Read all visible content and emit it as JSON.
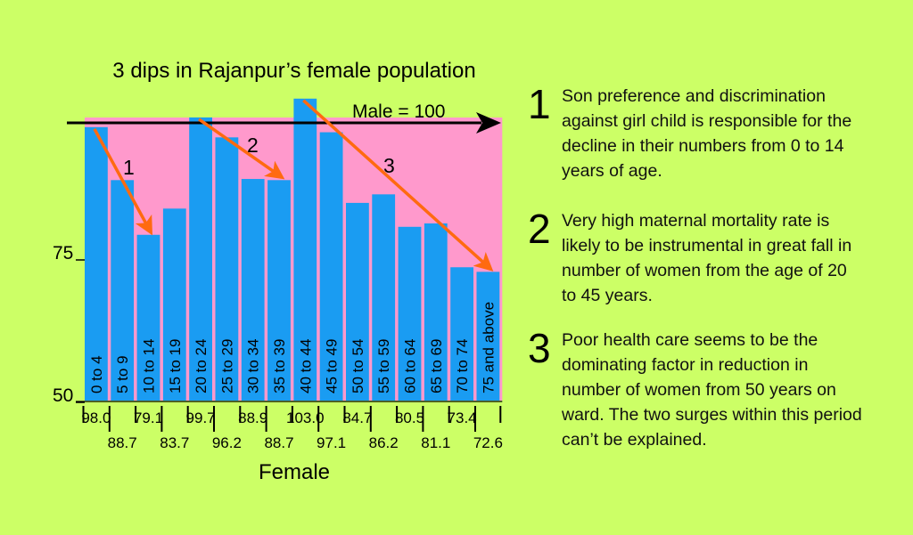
{
  "chart_data": {
    "type": "bar",
    "title": "3 dips in Rajanpur’s female population",
    "xlabel": "Female",
    "reference_label": "Male = 100",
    "reference_value": 100,
    "ylim": [
      50,
      101
    ],
    "y_ticks": [
      "75",
      "50"
    ],
    "y_tick_values": [
      75,
      50
    ],
    "categories": [
      "0 to 4",
      "5 to 9",
      "10 to 14",
      "15 to 19",
      "20 to 24",
      "25 to 29",
      "30 to 34",
      "35 to 39",
      "40 to 44",
      "45 to 49",
      "50 to 54",
      "55 to 59",
      "60 to 64",
      "65 to 69",
      "70 to 74",
      "75 and above"
    ],
    "value_labels": [
      "98.0",
      "88.7",
      "79.1",
      "83.7",
      "99.7",
      "96.2",
      "88.9",
      "88.7",
      "103.0",
      "97.1",
      "84.7",
      "86.2",
      "80.5",
      "81.1",
      "73.4",
      "72.6"
    ],
    "values": [
      98.0,
      88.7,
      79.1,
      83.7,
      99.7,
      96.2,
      88.9,
      88.7,
      103.0,
      97.1,
      84.7,
      86.2,
      80.5,
      81.1,
      73.4,
      72.6
    ],
    "dips": [
      {
        "label": "1",
        "from_index": 0,
        "to_index": 2
      },
      {
        "label": "2",
        "from_index": 4,
        "to_index": 7
      },
      {
        "label": "3",
        "from_index": 8,
        "to_index": 15
      }
    ],
    "colors": {
      "bar": "#1a9cf2",
      "deficit_area": "#ff99cc",
      "arrow": "#ff6a10",
      "background": "#ccff66",
      "axis": "#000000"
    }
  },
  "notes": [
    {
      "number": "1",
      "text": "Son preference and discrimination against girl child is responsible for the decline in their numbers from 0 to 14 years of age."
    },
    {
      "number": "2",
      "text": "Very high maternal mortality rate is likely to be instrumental in great fall in number of women from the age of 20 to 45 years."
    },
    {
      "number": "3",
      "text": "Poor health care seems to be the dominating factor in reduction in number of women from 50 years on ward. The two surges within this period can’t be explained."
    }
  ]
}
